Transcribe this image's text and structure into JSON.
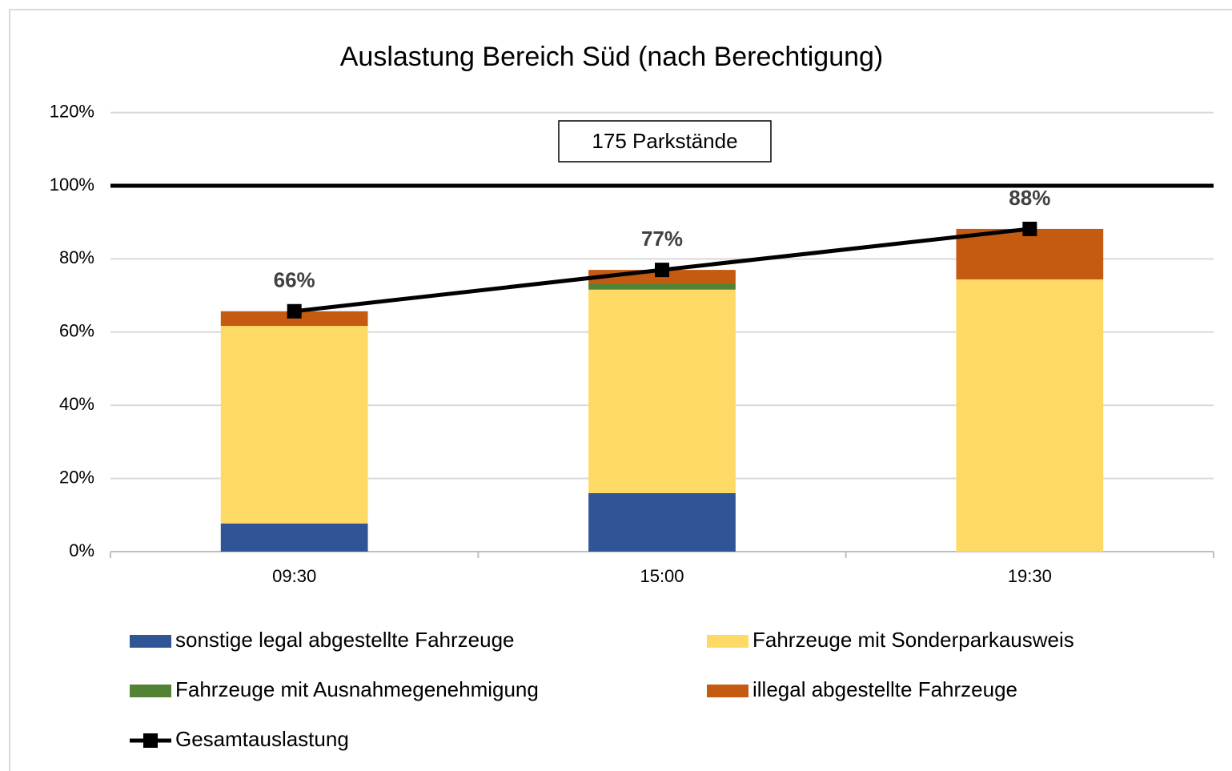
{
  "chart_data": {
    "type": "bar",
    "stacked": true,
    "title": "Auslastung Bereich Süd (nach Berechtigung)",
    "annotation": "175 Parkstände",
    "reference_line": 100,
    "categories": [
      "09:30",
      "15:00",
      "19:30"
    ],
    "series": [
      {
        "name": "sonstige legal abgestellte Fahrzeuge",
        "color": "#2f5597",
        "values": [
          7.7,
          16.0,
          0
        ]
      },
      {
        "name": "Fahrzeuge mit Sonderparkausweis",
        "color": "#ffd966",
        "values": [
          54.0,
          55.6,
          74.4
        ]
      },
      {
        "name": "Fahrzeuge mit Ausnahmegenehmigung",
        "color": "#548235",
        "values": [
          0,
          1.7,
          0
        ]
      },
      {
        "name": "illegal abgestellte Fahrzeuge",
        "color": "#c55a11",
        "values": [
          4.0,
          3.7,
          13.8
        ]
      },
      {
        "name": "Gesamtauslastung",
        "type": "line",
        "color": "#000000",
        "values": [
          65.7,
          77.0,
          88.2
        ],
        "value_labels": [
          "66%",
          "77%",
          "88%"
        ]
      }
    ],
    "ylim": [
      0,
      120
    ],
    "yticks": [
      {
        "value": 0,
        "label": "0%"
      },
      {
        "value": 20,
        "label": "20%"
      },
      {
        "value": 40,
        "label": "40%"
      },
      {
        "value": 60,
        "label": "60%"
      },
      {
        "value": 80,
        "label": "80%"
      },
      {
        "value": 100,
        "label": "100%"
      },
      {
        "value": 120,
        "label": "120%"
      }
    ],
    "grid": true
  }
}
